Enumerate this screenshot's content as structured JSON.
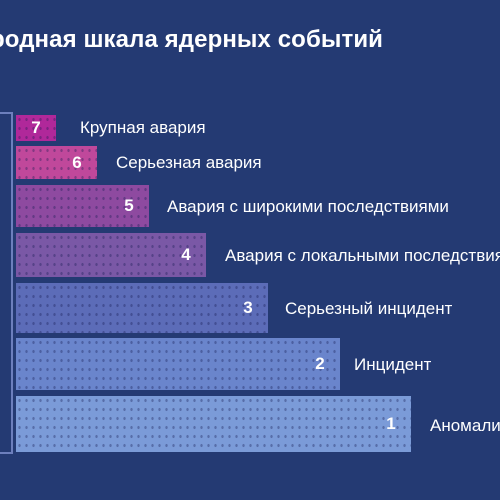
{
  "title": "родная шкала ядерных событий",
  "levels": [
    {
      "number": "7",
      "label": "Крупная авария",
      "color": "#b0289a"
    },
    {
      "number": "6",
      "label": "Серьезная авария",
      "color": "#c0489b"
    },
    {
      "number": "5",
      "label": "Авария с широкими последствиями",
      "color": "#8e4aa0"
    },
    {
      "number": "4",
      "label": "Авария с локальными последствиями",
      "color": "#7a58a6"
    },
    {
      "number": "3",
      "label": "Серьезный инцидент",
      "color": "#5c6cb8"
    },
    {
      "number": "2",
      "label": "Инцидент",
      "color": "#6a85cc"
    },
    {
      "number": "1",
      "label": "Аномалия",
      "color": "#7b9bd8"
    }
  ]
}
